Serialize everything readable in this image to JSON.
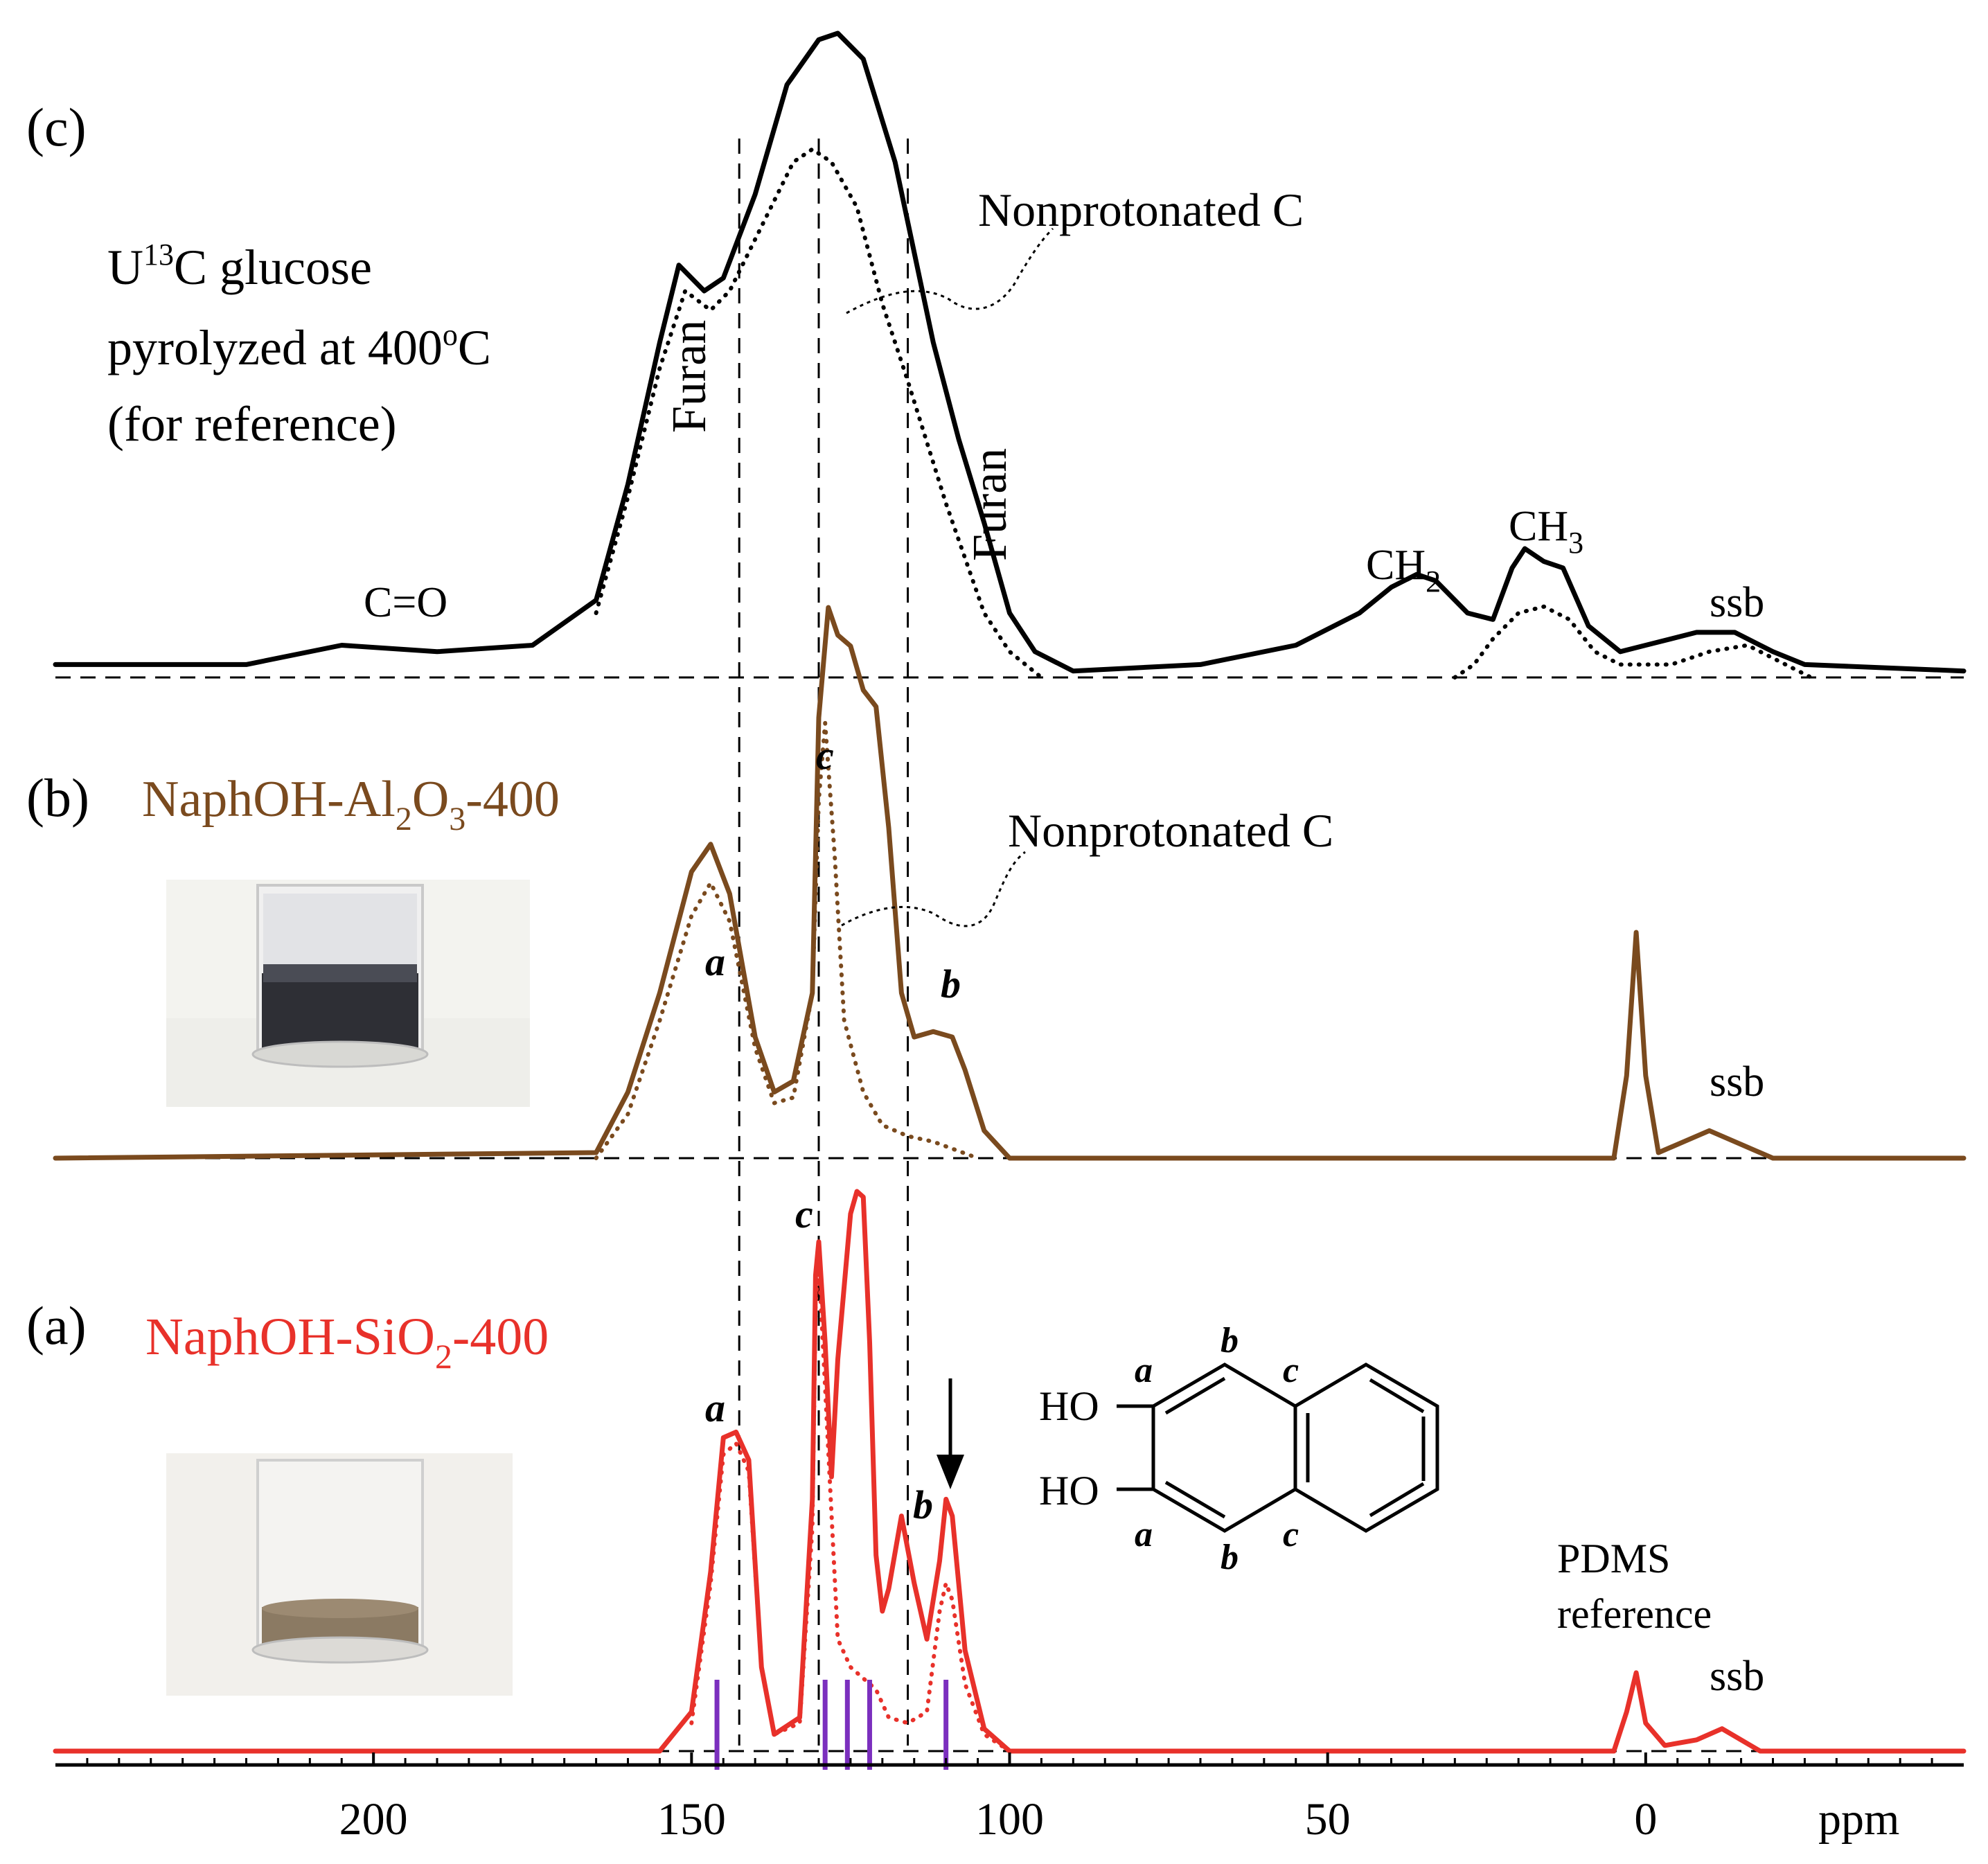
{
  "chart_data": {
    "type": "line",
    "xlabel": "ppm",
    "xlim": [
      250,
      -50
    ],
    "x_reversed": true,
    "x_ticks": [
      200,
      150,
      100,
      50,
      0
    ],
    "x_tick_labels": [
      "200",
      "150",
      "100",
      "50",
      "0"
    ],
    "panels": [
      {
        "id": "c",
        "panel_label": "(c)",
        "title_lines": [
          "U13C glucose",
          "pyrolyzed at 400oC",
          "(for reference)"
        ],
        "color": "#000000",
        "series": [
          {
            "style": "solid",
            "points": [
              [
                250,
                0.02
              ],
              [
                220,
                0.02
              ],
              [
                205,
                0.05
              ],
              [
                190,
                0.04
              ],
              [
                175,
                0.05
              ],
              [
                165,
                0.12
              ],
              [
                160,
                0.3
              ],
              [
                155,
                0.52
              ],
              [
                152,
                0.64
              ],
              [
                148,
                0.6
              ],
              [
                145,
                0.62
              ],
              [
                140,
                0.75
              ],
              [
                135,
                0.92
              ],
              [
                130,
                0.99
              ],
              [
                127,
                1.0
              ],
              [
                123,
                0.96
              ],
              [
                118,
                0.8
              ],
              [
                112,
                0.52
              ],
              [
                108,
                0.37
              ],
              [
                104,
                0.24
              ],
              [
                100,
                0.1
              ],
              [
                96,
                0.04
              ],
              [
                90,
                0.01
              ],
              [
                70,
                0.02
              ],
              [
                55,
                0.05
              ],
              [
                45,
                0.1
              ],
              [
                40,
                0.14
              ],
              [
                36,
                0.16
              ],
              [
                33,
                0.15
              ],
              [
                28,
                0.1
              ],
              [
                24,
                0.09
              ],
              [
                21,
                0.17
              ],
              [
                19,
                0.2
              ],
              [
                16,
                0.18
              ],
              [
                13,
                0.17
              ],
              [
                9,
                0.08
              ],
              [
                4,
                0.04
              ],
              [
                0,
                0.05
              ],
              [
                -8,
                0.07
              ],
              [
                -14,
                0.07
              ],
              [
                -20,
                0.04
              ],
              [
                -25,
                0.02
              ],
              [
                -50,
                0.01
              ]
            ]
          },
          {
            "style": "dotted",
            "points": [
              [
                165,
                0.1
              ],
              [
                160,
                0.28
              ],
              [
                155,
                0.48
              ],
              [
                151,
                0.6
              ],
              [
                147,
                0.57
              ],
              [
                144,
                0.6
              ],
              [
                138,
                0.72
              ],
              [
                134,
                0.8
              ],
              [
                131,
                0.82
              ],
              [
                128,
                0.8
              ],
              [
                124,
                0.73
              ],
              [
                120,
                0.58
              ],
              [
                116,
                0.46
              ],
              [
                110,
                0.27
              ],
              [
                104,
                0.1
              ],
              [
                100,
                0.04
              ],
              [
                95,
                0.0
              ]
            ]
          },
          {
            "style": "dotted",
            "points": [
              [
                30,
                0.0
              ],
              [
                27,
                0.02
              ],
              [
                24,
                0.06
              ],
              [
                20,
                0.1
              ],
              [
                16,
                0.11
              ],
              [
                12,
                0.09
              ],
              [
                8,
                0.04
              ],
              [
                4,
                0.02
              ],
              [
                -4,
                0.02
              ],
              [
                -10,
                0.04
              ],
              [
                -16,
                0.05
              ],
              [
                -20,
                0.03
              ],
              [
                -26,
                0.0
              ]
            ]
          }
        ],
        "annotations": [
          "Furan",
          "Furan",
          "Nonprotonated C",
          "C=O",
          "CH2",
          "CH3",
          "ssb"
        ]
      },
      {
        "id": "b",
        "panel_label": "(b)",
        "title": "NaphOH-Al2O3-400",
        "color": "#7a4a1e",
        "series": [
          {
            "style": "solid",
            "points": [
              [
                250,
                0.0
              ],
              [
                165,
                0.01
              ],
              [
                160,
                0.12
              ],
              [
                155,
                0.3
              ],
              [
                150,
                0.52
              ],
              [
                147,
                0.57
              ],
              [
                144,
                0.48
              ],
              [
                140,
                0.22
              ],
              [
                137,
                0.12
              ],
              [
                134,
                0.14
              ],
              [
                131,
                0.3
              ],
              [
                130,
                0.8
              ],
              [
                128.5,
                1.0
              ],
              [
                127,
                0.95
              ],
              [
                125,
                0.93
              ],
              [
                123,
                0.85
              ],
              [
                121,
                0.82
              ],
              [
                119,
                0.6
              ],
              [
                117,
                0.3
              ],
              [
                115,
                0.22
              ],
              [
                112,
                0.23
              ],
              [
                109,
                0.22
              ],
              [
                107,
                0.16
              ],
              [
                104,
                0.05
              ],
              [
                100,
                0.0
              ],
              [
                5,
                0.0
              ],
              [
                3,
                0.15
              ],
              [
                1.5,
                0.41
              ],
              [
                0,
                0.15
              ],
              [
                -2,
                0.01
              ],
              [
                -6,
                0.03
              ],
              [
                -10,
                0.05
              ],
              [
                -14,
                0.03
              ],
              [
                -20,
                0.0
              ],
              [
                -50,
                0.0
              ]
            ]
          },
          {
            "style": "dotted",
            "points": [
              [
                165,
                0.0
              ],
              [
                160,
                0.08
              ],
              [
                155,
                0.25
              ],
              [
                150,
                0.44
              ],
              [
                147,
                0.5
              ],
              [
                144,
                0.43
              ],
              [
                140,
                0.2
              ],
              [
                137,
                0.1
              ],
              [
                134,
                0.11
              ],
              [
                131,
                0.3
              ],
              [
                130,
                0.65
              ],
              [
                129,
                0.79
              ],
              [
                127.5,
                0.55
              ],
              [
                126,
                0.25
              ],
              [
                123,
                0.12
              ],
              [
                120,
                0.06
              ],
              [
                116,
                0.04
              ],
              [
                112,
                0.03
              ],
              [
                105,
                0.0
              ]
            ]
          }
        ],
        "annotations": [
          "a",
          "c",
          "b",
          "Nonprotonated C",
          "ssb"
        ]
      },
      {
        "id": "a",
        "panel_label": "(a)",
        "title": "NaphOH-SiO2-400",
        "color": "#e8312a",
        "series": [
          {
            "style": "solid",
            "points": [
              [
                250,
                0.0
              ],
              [
                155,
                0.0
              ],
              [
                150,
                0.07
              ],
              [
                147,
                0.32
              ],
              [
                145,
                0.56
              ],
              [
                143,
                0.57
              ],
              [
                141,
                0.52
              ],
              [
                139,
                0.15
              ],
              [
                137,
                0.03
              ],
              [
                133,
                0.06
              ],
              [
                131,
                0.45
              ],
              [
                130.5,
                0.85
              ],
              [
                130,
                0.91
              ],
              [
                129,
                0.73
              ],
              [
                128,
                0.49
              ],
              [
                127,
                0.7
              ],
              [
                125,
                0.96
              ],
              [
                124,
                1.0
              ],
              [
                123,
                0.99
              ],
              [
                122,
                0.73
              ],
              [
                121,
                0.35
              ],
              [
                120,
                0.25
              ],
              [
                119,
                0.29
              ],
              [
                117,
                0.42
              ],
              [
                115,
                0.3
              ],
              [
                113,
                0.2
              ],
              [
                111,
                0.34
              ],
              [
                110,
                0.45
              ],
              [
                109,
                0.42
              ],
              [
                107,
                0.18
              ],
              [
                104,
                0.04
              ],
              [
                100,
                0.0
              ],
              [
                5,
                0.0
              ],
              [
                3,
                0.07
              ],
              [
                1.5,
                0.14
              ],
              [
                0,
                0.05
              ],
              [
                -3,
                0.01
              ],
              [
                -8,
                0.02
              ],
              [
                -12,
                0.04
              ],
              [
                -18,
                0.0
              ],
              [
                -50,
                0.0
              ]
            ]
          },
          {
            "style": "dotted",
            "points": [
              [
                150,
                0.05
              ],
              [
                147,
                0.3
              ],
              [
                145,
                0.53
              ],
              [
                143,
                0.55
              ],
              [
                141,
                0.5
              ],
              [
                139,
                0.15
              ],
              [
                137,
                0.03
              ],
              [
                133,
                0.05
              ],
              [
                131,
                0.4
              ],
              [
                130.5,
                0.8
              ],
              [
                130,
                0.87
              ],
              [
                129,
                0.65
              ],
              [
                127,
                0.2
              ],
              [
                125,
                0.15
              ],
              [
                123,
                0.13
              ],
              [
                121,
                0.11
              ],
              [
                119,
                0.06
              ],
              [
                116,
                0.05
              ],
              [
                113,
                0.07
              ],
              [
                111,
                0.25
              ],
              [
                110,
                0.3
              ],
              [
                109,
                0.27
              ],
              [
                107,
                0.12
              ],
              [
                104,
                0.03
              ],
              [
                100,
                0.0
              ]
            ]
          }
        ],
        "annotations": [
          "a",
          "c",
          "b",
          "PDMS reference",
          "ssb"
        ],
        "stick_markers_ppm": [
          146,
          129,
          125.5,
          122,
          110
        ]
      }
    ],
    "vertical_guides_ppm": [
      142.5,
      130,
      116
    ],
    "molecule_labels": [
      "HO",
      "HO",
      "a",
      "a",
      "b",
      "b",
      "c",
      "c"
    ]
  },
  "labels": {
    "c": {
      "panel": "(c)",
      "title_1_pre": "U",
      "title_1_sup": "13",
      "title_1_post": "C glucose",
      "title_2_pre": "pyrolyzed at 400",
      "title_2_sup": "o",
      "title_2_post": "C",
      "title_3": "(for reference)",
      "furan_left": "Furan",
      "furan_right": "Furan",
      "nonprot": "Nonprotonated C",
      "co": "C=O",
      "ch2_main": "CH",
      "ch2_sub": "2",
      "ch3_main": "CH",
      "ch3_sub": "3",
      "ssb": "ssb"
    },
    "b": {
      "panel": "(b)",
      "title_pre": "NaphOH-Al",
      "title_sub1": "2",
      "title_mid": "O",
      "title_sub2": "3",
      "title_post": "-400",
      "peak_a": "a",
      "peak_b": "b",
      "peak_c": "c",
      "nonprot": "Nonprotonated C",
      "ssb": "ssb"
    },
    "a": {
      "panel": "(a)",
      "title_pre": "NaphOH-SiO",
      "title_sub": "2",
      "title_post": "-400",
      "peak_a": "a",
      "peak_b": "b",
      "peak_c": "c",
      "pdms_1": "PDMS",
      "pdms_2": "reference",
      "ssb": "ssb"
    },
    "molecule": {
      "ho1": "HO",
      "ho2": "HO",
      "a1": "a",
      "a2": "a",
      "b1": "b",
      "b2": "b",
      "c1": "c",
      "c2": "c"
    },
    "axis": {
      "unit": "ppm"
    }
  },
  "colors": {
    "panel_c": "#000000",
    "panel_b": "#7a4a1e",
    "panel_a": "#e8312a",
    "stick_markers": "#7b2fbe",
    "photo_b_sample": "#2e2f35",
    "photo_a_sample": "#8b7a63"
  }
}
